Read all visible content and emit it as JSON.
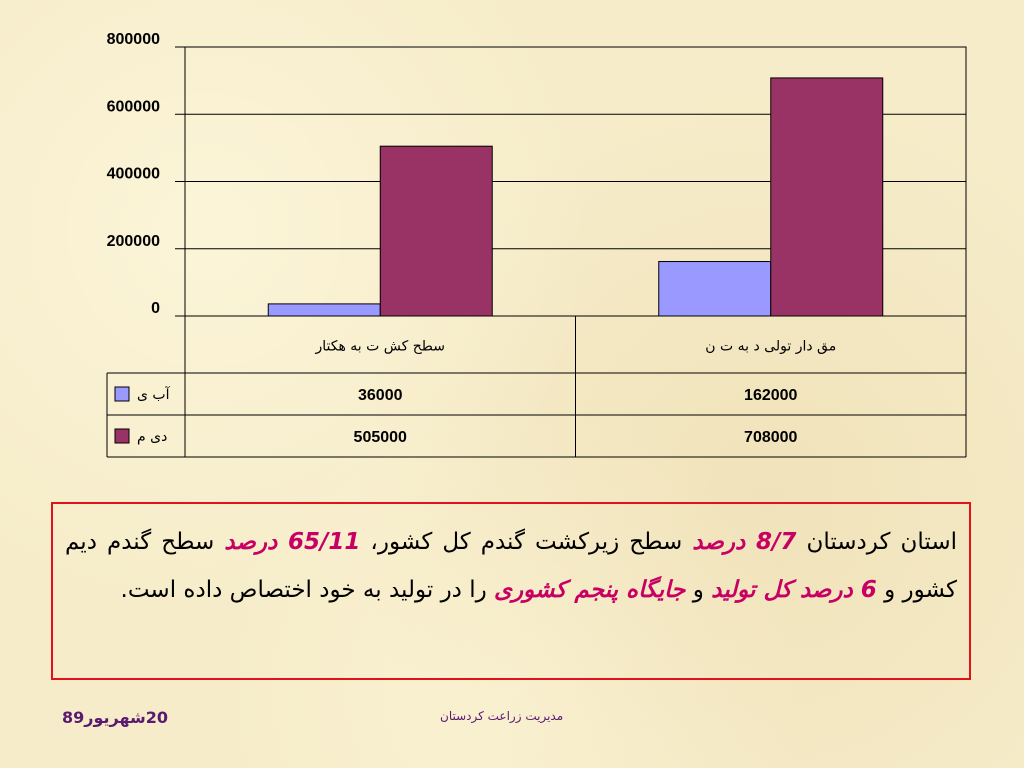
{
  "chart_data": {
    "type": "bar",
    "categories": [
      "سطح کشت به هکتار",
      "مقدار تولید به تن"
    ],
    "category_labels_rendered": [
      "سطح کش ت به هکتار",
      "مق دار تولی د به ت ن"
    ],
    "series": [
      {
        "name": "آبی",
        "name_rendered": "آب ی",
        "color": "#9999ff",
        "values": [
          36000,
          162000
        ]
      },
      {
        "name": "دیم",
        "name_rendered": "دی م",
        "color": "#993366",
        "values": [
          505000,
          708000
        ]
      }
    ],
    "yticks": [
      "0",
      "200000",
      "400000",
      "600000",
      "800000"
    ],
    "ylim": [
      0,
      800000
    ],
    "grid": true,
    "data_table": true,
    "table_values": [
      [
        "36000",
        "162000"
      ],
      [
        "505000",
        "708000"
      ]
    ]
  },
  "text_box": {
    "part1": "استان کردستان ",
    "hl1": "8/7 درصد",
    "part2": " سطح زیرکشت گندم کل کشور، ",
    "hl2": "65/11 درصد",
    "part3": " سطح گندم دیم کشور و ",
    "hl3": "6 درصد کل تولید",
    "part4": " و ",
    "hl4": "جایگاه پنجم کشوری",
    "part5": " را در تولید به خود اختصاص داده است."
  },
  "footer": {
    "date": "20شهریور89",
    "org": "مدیریت زراعت کردستان"
  },
  "colors": {
    "accent": "#c80064",
    "border": "#e0121a",
    "footer_text": "#5a1a70"
  }
}
